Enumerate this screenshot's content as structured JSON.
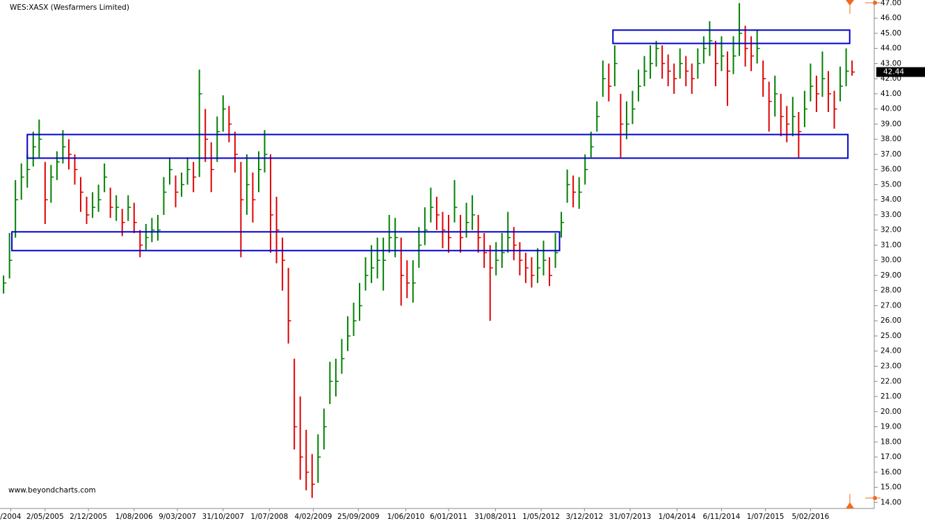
{
  "chart_data": {
    "type": "ohlc",
    "title": "WES:XASX (Wesfarmers Limited)",
    "watermark": "www.beyondcharts.com",
    "xlim": [
      -0.6,
      146.5
    ],
    "ylim": [
      13.6,
      47.2
    ],
    "xticks": [
      {
        "value": 1.2,
        "label": "/2004"
      },
      {
        "value": 7,
        "label": "2/05/2005"
      },
      {
        "value": 14.3,
        "label": "2/12/2005"
      },
      {
        "value": 22,
        "label": "1/08/2006"
      },
      {
        "value": 29.3,
        "label": "9/03/2007"
      },
      {
        "value": 37,
        "label": "31/10/2007"
      },
      {
        "value": 44.8,
        "label": "1/07/2008"
      },
      {
        "value": 52.2,
        "label": "4/02/2009"
      },
      {
        "value": 59.8,
        "label": "25/09/2009"
      },
      {
        "value": 67.8,
        "label": "1/06/2010"
      },
      {
        "value": 75,
        "label": "6/01/2011"
      },
      {
        "value": 82.9,
        "label": "31/08/2011"
      },
      {
        "value": 90.6,
        "label": "1/05/2012"
      },
      {
        "value": 97.9,
        "label": "3/12/2012"
      },
      {
        "value": 105.6,
        "label": "31/07/2013"
      },
      {
        "value": 113.5,
        "label": "1/04/2014"
      },
      {
        "value": 121,
        "label": "6/11/2014"
      },
      {
        "value": 128.4,
        "label": "1/07/2015"
      },
      {
        "value": 136,
        "label": "5/02/2016"
      }
    ],
    "yticks": [
      {
        "value": 14,
        "label": "14.00"
      },
      {
        "value": 15,
        "label": "15.00"
      },
      {
        "value": 16,
        "label": "16.00"
      },
      {
        "value": 17,
        "label": "17.00"
      },
      {
        "value": 18,
        "label": "18.00"
      },
      {
        "value": 19,
        "label": "19.00"
      },
      {
        "value": 20,
        "label": "20.00"
      },
      {
        "value": 21,
        "label": "21.00"
      },
      {
        "value": 22,
        "label": "22.00"
      },
      {
        "value": 23,
        "label": "23.00"
      },
      {
        "value": 24,
        "label": "24.00"
      },
      {
        "value": 25,
        "label": "25.00"
      },
      {
        "value": 26,
        "label": "26.00"
      },
      {
        "value": 27,
        "label": "27.00"
      },
      {
        "value": 28,
        "label": "28.00"
      },
      {
        "value": 29,
        "label": "29.00"
      },
      {
        "value": 30,
        "label": "30.00"
      },
      {
        "value": 31,
        "label": "31.00"
      },
      {
        "value": 32,
        "label": "32.00"
      },
      {
        "value": 33,
        "label": "33.00"
      },
      {
        "value": 34,
        "label": "34.00"
      },
      {
        "value": 35,
        "label": "35.00"
      },
      {
        "value": 36,
        "label": "36.00"
      },
      {
        "value": 37,
        "label": "37.00"
      },
      {
        "value": 38,
        "label": "38.00"
      },
      {
        "value": 39,
        "label": "39.00"
      },
      {
        "value": 40,
        "label": "40.00"
      },
      {
        "value": 41,
        "label": "41.00"
      },
      {
        "value": 42,
        "label": "42.00"
      },
      {
        "value": 43,
        "label": "43.00"
      },
      {
        "value": 44,
        "label": "44.00"
      },
      {
        "value": 45,
        "label": "45.00"
      },
      {
        "value": 46,
        "label": "46.00"
      },
      {
        "value": 47,
        "label": "47.00"
      }
    ],
    "up_color": "#008000",
    "down_color": "#e00000",
    "zone_color": "#0000cc",
    "last_price": 42.44,
    "zones": [
      {
        "x": [
          4.0,
          142.3
        ],
        "y": [
          36.75,
          38.31
        ]
      },
      {
        "x": [
          1.4,
          93.7
        ],
        "y": [
          30.64,
          31.88
        ]
      },
      {
        "x": [
          102.7,
          142.6
        ],
        "y": [
          44.33,
          45.21
        ]
      }
    ],
    "x": [
      0,
      1,
      2,
      3,
      4,
      5,
      6,
      7,
      8,
      9,
      10,
      11,
      12,
      13,
      14,
      15,
      16,
      17,
      18,
      19,
      20,
      21,
      22,
      23,
      24,
      25,
      26,
      27,
      28,
      29,
      30,
      31,
      32,
      33,
      34,
      35,
      36,
      37,
      38,
      39,
      40,
      41,
      42,
      43,
      44,
      45,
      46,
      47,
      48,
      49,
      50,
      51,
      52,
      53,
      54,
      55,
      56,
      57,
      58,
      59,
      60,
      61,
      62,
      63,
      64,
      65,
      66,
      67,
      68,
      69,
      70,
      71,
      72,
      73,
      74,
      75,
      76,
      77,
      78,
      79,
      80,
      81,
      82,
      83,
      84,
      85,
      86,
      87,
      88,
      89,
      90,
      91,
      92,
      93,
      94,
      95,
      96,
      97,
      98,
      99,
      100,
      101,
      102,
      103,
      104,
      105,
      106,
      107,
      108,
      109,
      110,
      111,
      112,
      113,
      114,
      115,
      116,
      117,
      118,
      119,
      120,
      121,
      122,
      123,
      124,
      125,
      126,
      127,
      128,
      129,
      130,
      131,
      132,
      133,
      134,
      135,
      136,
      137,
      138,
      139,
      140,
      141,
      142,
      143
    ],
    "high": [
      29.0,
      31.8,
      35.3,
      36.4,
      37.0,
      38.5,
      39.3,
      36.5,
      36.3,
      37.2,
      38.6,
      38.0,
      37.0,
      35.5,
      34.2,
      34.5,
      35.0,
      36.4,
      34.8,
      34.3,
      33.4,
      34.3,
      33.8,
      32.0,
      32.4,
      32.8,
      33.0,
      35.5,
      36.8,
      35.6,
      35.8,
      36.8,
      36.5,
      42.6,
      40.0,
      37.8,
      39.5,
      40.9,
      40.2,
      38.5,
      36.5,
      37.0,
      35.8,
      37.2,
      38.6,
      37.0,
      34.2,
      31.5,
      29.5,
      23.5,
      21.0,
      18.8,
      17.2,
      18.5,
      20.2,
      23.3,
      23.5,
      24.8,
      26.3,
      27.2,
      28.5,
      30.2,
      31.0,
      31.5,
      31.5,
      33.0,
      32.8,
      31.5,
      30.0,
      30.0,
      32.2,
      33.5,
      34.8,
      34.2,
      33.2,
      33.0,
      35.3,
      33.0,
      33.8,
      34.3,
      33.0,
      31.8,
      31.0,
      31.2,
      31.8,
      33.2,
      32.2,
      31.2,
      30.5,
      30.2,
      30.8,
      31.3,
      30.2,
      31.8,
      33.2,
      36.0,
      35.6,
      35.5,
      37.0,
      38.5,
      40.5,
      43.2,
      43.0,
      44.2,
      41.0,
      40.5,
      41.2,
      42.6,
      43.5,
      44.2,
      44.5,
      44.2,
      43.6,
      43.0,
      44.0,
      43.5,
      43.0,
      44.0,
      44.8,
      45.8,
      44.5,
      44.8,
      43.8,
      44.8,
      47.0,
      45.5,
      44.8,
      45.2,
      43.2,
      41.8,
      42.2,
      41.0,
      40.2,
      40.8,
      39.8,
      41.2,
      43.0,
      42.2,
      43.8,
      42.5,
      41.2,
      42.8,
      44.0,
      43.2
    ],
    "low": [
      27.8,
      28.8,
      31.5,
      34.0,
      34.8,
      36.2,
      36.8,
      32.4,
      33.8,
      35.3,
      36.4,
      36.0,
      35.0,
      33.2,
      32.4,
      32.8,
      33.2,
      34.5,
      32.8,
      32.6,
      31.6,
      32.6,
      31.8,
      30.2,
      30.7,
      31.2,
      31.3,
      33.0,
      35.0,
      33.5,
      34.2,
      35.0,
      34.5,
      35.5,
      36.5,
      34.5,
      36.5,
      38.5,
      37.8,
      35.8,
      30.2,
      33.0,
      32.5,
      34.5,
      35.8,
      30.5,
      29.8,
      28.0,
      24.5,
      17.5,
      15.5,
      14.8,
      14.3,
      15.3,
      17.5,
      20.5,
      21.0,
      22.5,
      24.0,
      25.0,
      26.0,
      28.0,
      28.5,
      28.8,
      28.0,
      30.5,
      30.2,
      27.0,
      27.5,
      27.2,
      29.5,
      31.0,
      32.5,
      32.0,
      30.8,
      30.5,
      32.5,
      30.5,
      31.5,
      32.0,
      30.5,
      29.5,
      26.0,
      29.0,
      29.5,
      30.5,
      30.0,
      29.0,
      28.5,
      28.2,
      28.5,
      29.0,
      28.3,
      29.5,
      31.5,
      33.8,
      33.5,
      33.4,
      35.0,
      36.8,
      38.5,
      40.8,
      40.5,
      41.5,
      36.8,
      38.0,
      39.0,
      40.5,
      41.5,
      42.0,
      42.8,
      42.0,
      41.5,
      41.0,
      42.0,
      41.5,
      41.0,
      42.0,
      43.0,
      43.5,
      41.5,
      42.5,
      40.2,
      42.3,
      43.5,
      42.8,
      42.5,
      43.0,
      40.8,
      38.5,
      39.5,
      38.2,
      37.8,
      38.2,
      36.8,
      38.8,
      40.5,
      39.8,
      40.8,
      39.8,
      38.7,
      40.5,
      41.5,
      42.2
    ],
    "close": [
      28.5,
      30,
      34,
      35.5,
      36,
      37.5,
      38,
      34,
      35.5,
      36.5,
      37.5,
      37,
      36,
      34.5,
      33,
      33.5,
      34,
      35.5,
      33.5,
      33.5,
      32.5,
      33.5,
      32.5,
      31,
      31.5,
      32,
      32,
      34.5,
      36,
      34.5,
      35,
      36,
      35.5,
      41,
      38,
      36,
      38.5,
      40,
      39,
      37,
      34,
      35,
      34,
      36,
      37,
      33,
      32,
      30,
      26,
      19,
      17,
      16,
      15.2,
      17,
      19,
      22,
      22,
      23.5,
      25,
      26,
      27,
      29,
      29.5,
      30,
      30,
      31.5,
      31.5,
      29,
      28.5,
      28.5,
      31,
      32,
      33.5,
      33,
      32,
      31.5,
      33.5,
      31.5,
      32.5,
      33,
      31.5,
      30.5,
      29.5,
      30,
      30.5,
      31.5,
      31,
      30,
      29.5,
      29,
      29.5,
      30,
      29,
      30.5,
      32.5,
      35,
      34.5,
      34.5,
      36,
      37.5,
      39.5,
      42,
      41.5,
      43,
      39,
      39,
      40,
      41.5,
      42.5,
      43,
      44,
      43,
      42.5,
      42,
      43,
      42.5,
      42,
      43,
      44,
      44.5,
      43,
      43.5,
      42.5,
      43.5,
      45,
      44,
      43.5,
      44,
      42,
      40.5,
      41,
      39.5,
      39,
      39.5,
      38.5,
      40,
      41.5,
      41,
      42,
      41,
      40,
      41.5,
      42.5,
      42.44
    ]
  }
}
